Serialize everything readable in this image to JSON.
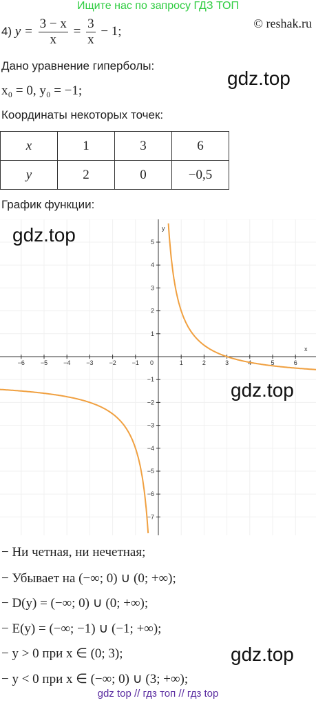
{
  "banner": "Ищите нас по запросу ГДЗ ТОП",
  "copyright": "© reshak.ru",
  "task": {
    "number": "4)",
    "lhs": "y =",
    "frac1": {
      "num": "3 − x",
      "den": "x"
    },
    "eq": "=",
    "frac2": {
      "num": "3",
      "den": "x"
    },
    "tail": "− 1;"
  },
  "given_heading": "Дано уравнение гиперболы:",
  "given": "x₀ = 0,  y₀ = −1;",
  "points_heading": "Координаты некоторых точек:",
  "table": {
    "rows": [
      [
        "x",
        "1",
        "3",
        "6"
      ],
      [
        "y",
        "2",
        "0",
        "−0,5"
      ]
    ]
  },
  "graph_heading": "График функции:",
  "graph": {
    "x_label": "x",
    "y_label": "y",
    "origin_label": "0",
    "x_tick_labels": [
      "−6",
      "−5",
      "−4",
      "−3",
      "−2",
      "−1",
      "1",
      "2",
      "3",
      "4",
      "5",
      "6"
    ],
    "y_tick_labels": [
      "5",
      "4",
      "3",
      "2",
      "1",
      "−1",
      "−2",
      "−3",
      "−4",
      "−5",
      "−6",
      "−7"
    ]
  },
  "properties": [
    "− Ни четная, ни нечетная;",
    "− Убывает на (−∞; 0) ∪ (0; +∞);",
    "− D(y) = (−∞; 0) ∪ (0; +∞);",
    "− E(y) = (−∞; −1) ∪ (−1; +∞);",
    "− y > 0 при x ∈ (0; 3);",
    "− y < 0 при x ∈ (−∞; 0) ∪ (3; +∞);"
  ],
  "watermarks": [
    "gdz.top",
    "gdz.top",
    "gdz.top",
    "gdz.top"
  ],
  "footer": "gdz top  //  гдз топ  //  гдз top"
}
